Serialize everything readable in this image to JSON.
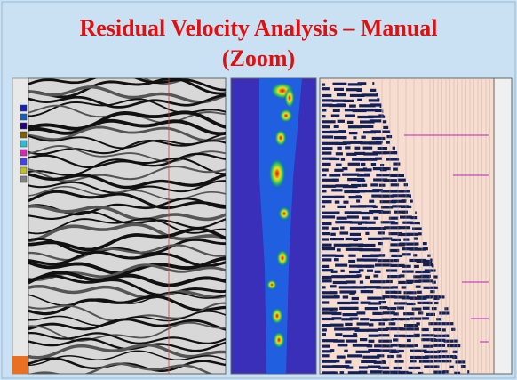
{
  "slide": {
    "title_lines": [
      "Residual Velocity Analysis – Manual",
      "(Zoom)"
    ]
  }
}
